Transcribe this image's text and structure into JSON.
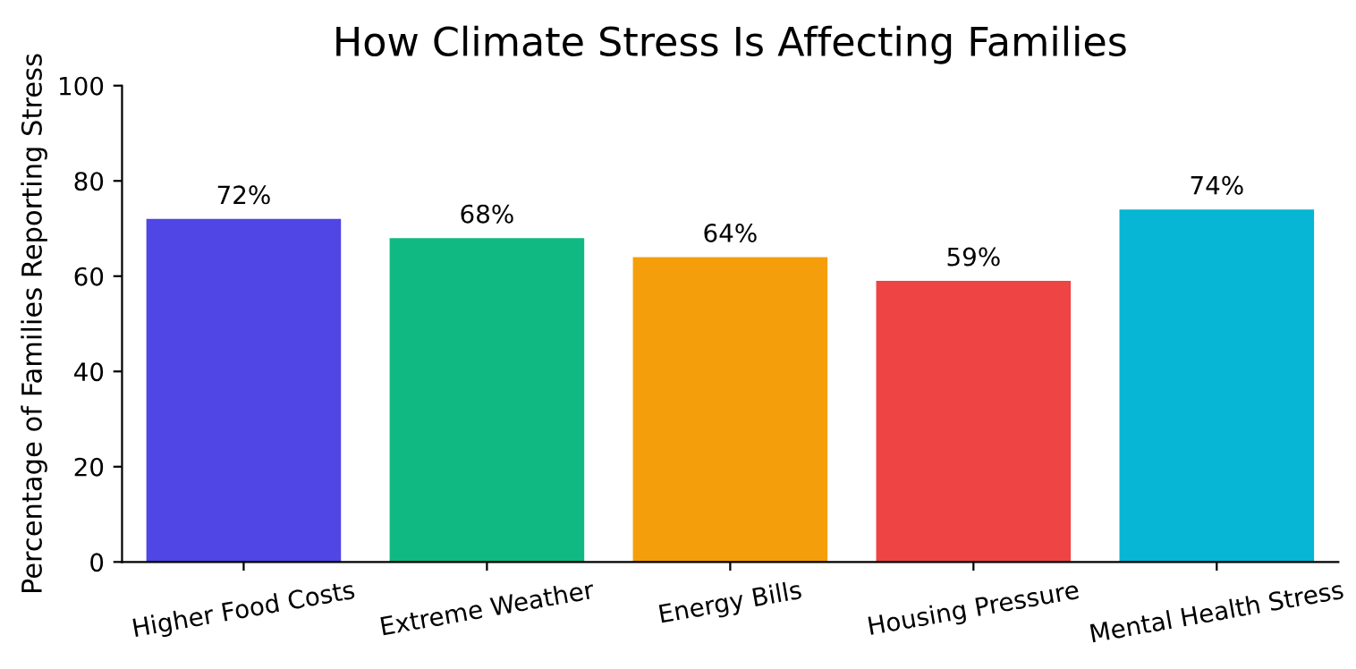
{
  "chart_data": {
    "type": "bar",
    "title": "How Climate Stress Is Affecting Families",
    "ylabel": "Percentage of Families Reporting Stress",
    "categories": [
      "Higher Food Costs",
      "Extreme Weather",
      "Energy Bills",
      "Housing Pressure",
      "Mental Health Stress"
    ],
    "values": [
      72,
      68,
      64,
      59,
      74
    ],
    "colors": [
      "#4f46e5",
      "#10b981",
      "#f59e0b",
      "#ef4444",
      "#06b6d4"
    ],
    "value_labels": [
      "72%",
      "68%",
      "64%",
      "59%",
      "74%"
    ],
    "ylim": [
      0,
      100
    ],
    "yticks": [
      0,
      20,
      40,
      60,
      80,
      100
    ],
    "grid": false,
    "legend": false
  }
}
